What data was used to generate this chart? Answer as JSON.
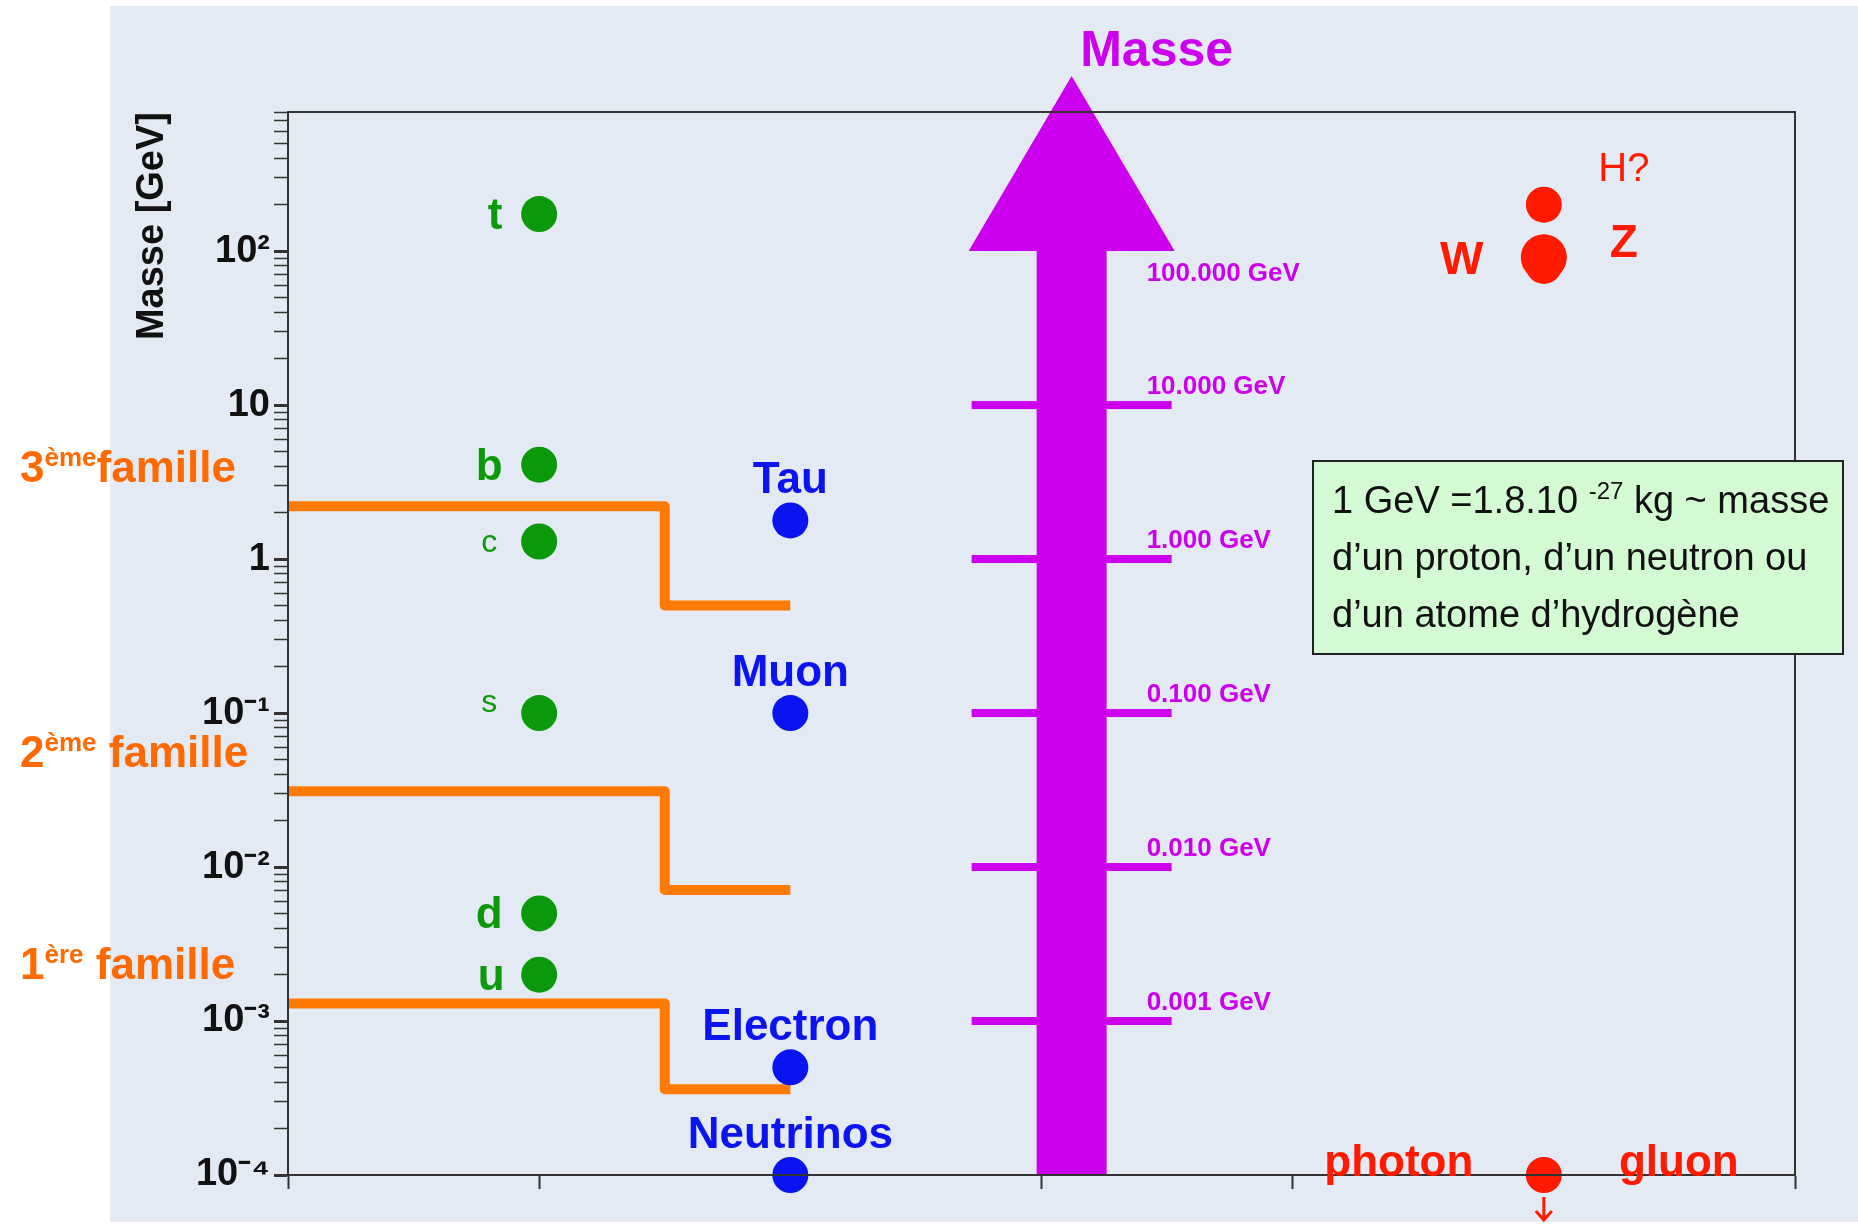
{
  "chart_data": {
    "type": "scatter",
    "title": "Masse",
    "ylabel": "Masse [GeV]",
    "log": "y",
    "marker": "circle",
    "tick_labels": "y",
    "categories": [
      null,
      null,
      null,
      null,
      null,
      null,
      null
    ],
    "ylim": [
      0.0001,
      800
    ],
    "yticks": [
      {
        "value": 0.0001,
        "label": "10⁻⁴"
      },
      {
        "value": 0.0002,
        "label": null
      },
      {
        "value": 0.0003,
        "label": null
      },
      {
        "value": 0.0004,
        "label": null
      },
      {
        "value": 0.0005,
        "label": null
      },
      {
        "value": 0.0006,
        "label": null
      },
      {
        "value": 0.0007,
        "label": null
      },
      {
        "value": 0.0008,
        "label": null
      },
      {
        "value": 0.0009,
        "label": null
      },
      {
        "value": 0.001,
        "label": "10⁻³"
      },
      {
        "value": 0.002,
        "label": null
      },
      {
        "value": 0.003,
        "label": null
      },
      {
        "value": 0.004,
        "label": null
      },
      {
        "value": 0.005,
        "label": null
      },
      {
        "value": 0.006,
        "label": null
      },
      {
        "value": 0.007,
        "label": null
      },
      {
        "value": 0.008,
        "label": null
      },
      {
        "value": 0.009,
        "label": null
      },
      {
        "value": 0.01,
        "label": "10⁻²"
      },
      {
        "value": 0.02,
        "label": null
      },
      {
        "value": 0.03,
        "label": null
      },
      {
        "value": 0.04,
        "label": null
      },
      {
        "value": 0.05,
        "label": null
      },
      {
        "value": 0.06,
        "label": null
      },
      {
        "value": 0.07,
        "label": null
      },
      {
        "value": 0.08,
        "label": null
      },
      {
        "value": 0.09,
        "label": null
      },
      {
        "value": 0.1,
        "label": "10⁻¹"
      },
      {
        "value": 0.2,
        "label": null
      },
      {
        "value": 0.3,
        "label": null
      },
      {
        "value": 0.4,
        "label": null
      },
      {
        "value": 0.5,
        "label": null
      },
      {
        "value": 0.6,
        "label": null
      },
      {
        "value": 0.7,
        "label": null
      },
      {
        "value": 0.8,
        "label": null
      },
      {
        "value": 0.9,
        "label": null
      },
      1,
      {
        "value": 2,
        "label": null
      },
      {
        "value": 3,
        "label": null
      },
      {
        "value": 4,
        "label": null
      },
      {
        "value": 5,
        "label": null
      },
      {
        "value": 6,
        "label": null
      },
      {
        "value": 7,
        "label": null
      },
      {
        "value": 8,
        "label": null
      },
      {
        "value": 9,
        "label": null
      },
      10,
      {
        "value": 20,
        "label": null
      },
      {
        "value": 30,
        "label": null
      },
      {
        "value": 40,
        "label": null
      },
      {
        "value": 50,
        "label": null
      },
      {
        "value": 60,
        "label": null
      },
      {
        "value": 70,
        "label": null
      },
      {
        "value": 80,
        "label": null
      },
      {
        "value": 90,
        "label": null
      },
      {
        "value": 100,
        "label": "10²"
      },
      {
        "value": 200,
        "label": null
      },
      {
        "value": 300,
        "label": null
      },
      {
        "value": 400,
        "label": null
      },
      {
        "value": 500,
        "label": null
      },
      {
        "value": 600,
        "label": null
      },
      {
        "value": 700,
        "label": null
      },
      {
        "value": 800,
        "label": null
      }
    ],
    "series": [
      {
        "name": "t",
        "color": "#0a990a",
        "values": [
          null,
          174,
          null,
          null,
          null,
          null,
          null
        ]
      },
      {
        "name": "b",
        "color": "#0a990a",
        "values": [
          null,
          4.1,
          null,
          null,
          null,
          null,
          null
        ]
      },
      {
        "name": "c",
        "color": "#0a990a",
        "values": [
          null,
          1.3,
          null,
          null,
          null,
          null,
          null
        ]
      },
      {
        "name": "s",
        "color": "#0a990a",
        "values": [
          null,
          0.1,
          null,
          null,
          null,
          null,
          null
        ]
      },
      {
        "name": "d",
        "color": "#0a990a",
        "values": [
          null,
          0.005,
          null,
          null,
          null,
          null,
          null
        ]
      },
      {
        "name": "u",
        "color": "#0a990a",
        "values": [
          null,
          0.002,
          null,
          null,
          null,
          null,
          null
        ]
      },
      {
        "name": "Tau",
        "color": "#0a14f0",
        "values": [
          null,
          null,
          1.78,
          null,
          null,
          null,
          null
        ]
      },
      {
        "name": "Muon",
        "color": "#0a14f0",
        "values": [
          null,
          null,
          0.1,
          null,
          null,
          null,
          null
        ]
      },
      {
        "name": "Electron",
        "color": "#0a14f0",
        "values": [
          null,
          null,
          0.0005,
          null,
          null,
          null,
          null
        ]
      },
      {
        "name": "Neutrinos",
        "color": "#0a14f0",
        "values": [
          null,
          null,
          0.0001,
          null,
          null,
          null,
          null
        ]
      },
      {
        "name": "W",
        "color": "#ff1a00",
        "values": [
          null,
          null,
          null,
          null,
          null,
          80,
          null
        ]
      },
      {
        "name": "Z",
        "color": "#ff1a00",
        "values": [
          null,
          null,
          null,
          null,
          null,
          91,
          null
        ]
      },
      {
        "name": "H?",
        "color": "#ff1a00",
        "values": [
          null,
          null,
          null,
          null,
          null,
          200,
          null
        ]
      },
      {
        "name": "photon",
        "color": "#ff1a00",
        "values": [
          null,
          null,
          null,
          null,
          null,
          0.0001,
          null
        ]
      },
      {
        "type": "step",
        "marker": "none",
        "color": "#ff7a00",
        "values": [
          2.2,
          2.2,
          0.5,
          null,
          null,
          null,
          null
        ]
      },
      {
        "type": "step",
        "marker": "none",
        "color": "#ff7a00",
        "values": [
          0.031,
          0.031,
          0.0071,
          null,
          null,
          null,
          null
        ]
      },
      {
        "type": "step",
        "marker": "none",
        "color": "#ff7a00",
        "values": [
          0.0013,
          0.0013,
          0.00036,
          null,
          null,
          null,
          null
        ]
      }
    ],
    "annotations": [
      "3$^{ème}$famille",
      "2$^{ème}$ famille",
      "1$^{ère}$ famille",
      "100.000 GeV",
      "10.000 GeV",
      "1.000 GeV",
      "0.100 GeV",
      "0.010 GeV",
      "0.001 GeV",
      "gluon",
      "1 GeV =1.8.10 $^{-27}$ kg ~ masse d’un proton, d’un neutron ou d’un atome d’hydrogène"
    ]
  }
}
